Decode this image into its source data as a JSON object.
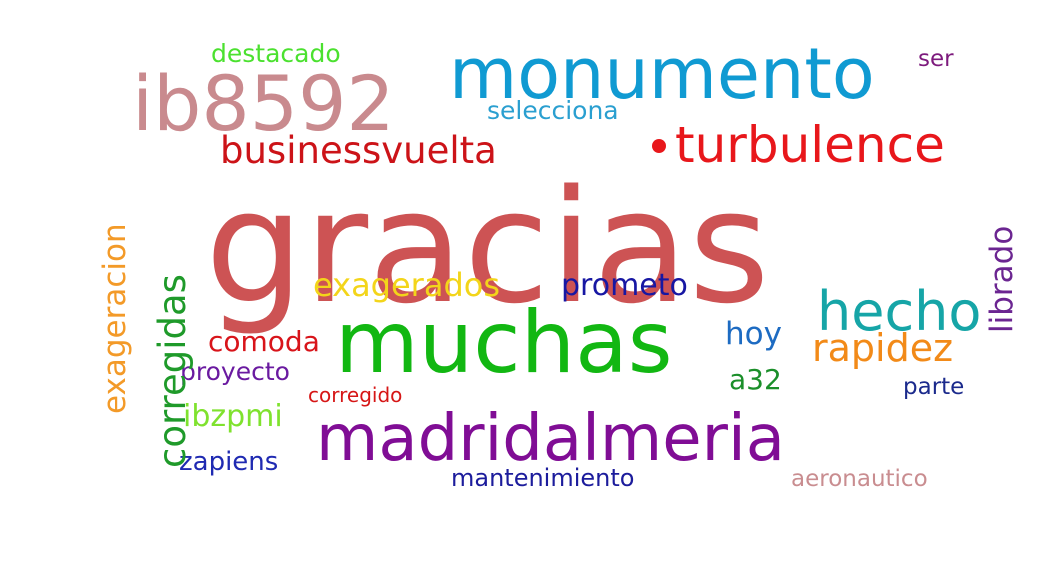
{
  "words": [
    {
      "id": "gracias",
      "text": "gracias",
      "color": "#cd5354"
    },
    {
      "id": "muchas",
      "text": "muchas",
      "color": "#12b712"
    },
    {
      "id": "madridalmeria",
      "text": "madridalmeria",
      "color": "#800d95"
    },
    {
      "id": "monumento",
      "text": "monumento",
      "color": "#109ad2"
    },
    {
      "id": "ib8592",
      "text": "ib8592",
      "color": "#c98a8e"
    },
    {
      "id": "turbulence",
      "text": "turbulence",
      "color": "#e8171b"
    },
    {
      "id": "businessvuelta",
      "text": "businessvuelta",
      "color": "#cc1318"
    },
    {
      "id": "hecho",
      "text": "hecho",
      "color": "#16a5a7"
    },
    {
      "id": "exagerados",
      "text": "exagerados",
      "color": "#f3d51a"
    },
    {
      "id": "prometo",
      "text": "prometo",
      "color": "#1717a3"
    },
    {
      "id": "hoy",
      "text": "hoy",
      "color": "#1d6bc2"
    },
    {
      "id": "rapidez",
      "text": "rapidez",
      "color": "#f28a18"
    },
    {
      "id": "comoda",
      "text": "comoda",
      "color": "#d8141a"
    },
    {
      "id": "proyecto",
      "text": "proyecto",
      "color": "#6a1aa0"
    },
    {
      "id": "corregido",
      "text": "corregido",
      "color": "#d61616"
    },
    {
      "id": "ibzpmi",
      "text": "ibzpmi",
      "color": "#7fe22e"
    },
    {
      "id": "zapiens",
      "text": "zapiens",
      "color": "#1f2ab2"
    },
    {
      "id": "a32",
      "text": "a32",
      "color": "#1b8f2a"
    },
    {
      "id": "parte",
      "text": "parte",
      "color": "#1b2a8c"
    },
    {
      "id": "mantenimiento",
      "text": "mantenimiento",
      "color": "#1c1c9c"
    },
    {
      "id": "aeronautico",
      "text": "aeronautico",
      "color": "#c98d90"
    },
    {
      "id": "selecciona",
      "text": "selecciona",
      "color": "#2a9fd0"
    },
    {
      "id": "destacado",
      "text": "destacado",
      "color": "#4be12f"
    },
    {
      "id": "ser",
      "text": "ser",
      "color": "#7d1a7d"
    },
    {
      "id": "corregidas",
      "text": "corregidas",
      "color": "#1f9a2a"
    },
    {
      "id": "exageracion",
      "text": "exageracion",
      "color": "#f39a28"
    },
    {
      "id": "librado",
      "text": "librado",
      "color": "#6b2591"
    }
  ]
}
